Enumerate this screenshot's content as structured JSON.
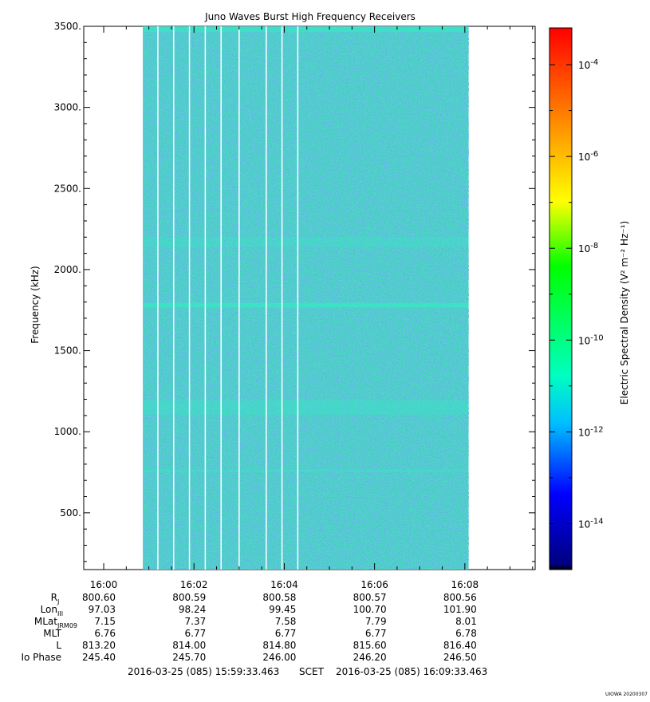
{
  "chart_data": {
    "type": "heatmap",
    "title": "Juno Waves Burst High Frequency Receivers",
    "ylabel": "Frequency (kHz)",
    "colorbar_label": "Electric Spectral Density (V² m⁻² Hz⁻¹)",
    "ylim": [
      150,
      3500
    ],
    "y_ticks": [
      "3500.",
      "3000.",
      "2500.",
      "2000.",
      "1500.",
      "1000.",
      "500."
    ],
    "y_tick_values": [
      3500,
      3000,
      2500,
      2000,
      1500,
      1000,
      500
    ],
    "x_range": [
      "15:59:33.463",
      "16:09:33.463"
    ],
    "x_ticks": [
      "16:00",
      "16:02",
      "16:04",
      "16:06",
      "16:08"
    ],
    "data_span": [
      "16:00:52",
      "16:08:05"
    ],
    "data_gaps": [
      "16:01:12",
      "16:01:33",
      "16:01:54",
      "16:02:15",
      "16:02:36",
      "16:03:00",
      "16:03:36",
      "16:03:57",
      "16:04:18"
    ],
    "colorbar_log_range": [
      -15,
      -3.2
    ],
    "colorbar_ticks": [
      {
        "base": "10",
        "exp": "-4",
        "value": -4
      },
      {
        "base": "10",
        "exp": "-6",
        "value": -6
      },
      {
        "base": "10",
        "exp": "-8",
        "value": -8
      },
      {
        "base": "10",
        "exp": "-10",
        "value": -10
      },
      {
        "base": "10",
        "exp": "-12",
        "value": -12
      },
      {
        "base": "10",
        "exp": "-14",
        "value": -14
      }
    ],
    "colors": {
      "background_fill": "#4dd6c4",
      "colorbar_stops": [
        "#000080",
        "#0000ff",
        "#00bfff",
        "#00ffbf",
        "#00ff00",
        "#ffff00",
        "#ff8000",
        "#ff0000"
      ]
    }
  },
  "ephemeris": {
    "rows": [
      {
        "label": "R",
        "sub": "J",
        "values": [
          "800.60",
          "800.59",
          "800.58",
          "800.57",
          "800.56"
        ]
      },
      {
        "label": "Lon",
        "sub": "III",
        "values": [
          "97.03",
          "98.24",
          "99.45",
          "100.70",
          "101.90"
        ]
      },
      {
        "label": "MLat",
        "sub": "JRM09",
        "values": [
          "7.15",
          "7.37",
          "7.58",
          "7.79",
          "8.01"
        ]
      },
      {
        "label": "MLT",
        "sub": "",
        "values": [
          "6.76",
          "6.77",
          "6.77",
          "6.77",
          "6.78"
        ]
      },
      {
        "label": "L",
        "sub": "",
        "values": [
          "813.20",
          "814.00",
          "814.80",
          "815.60",
          "816.40"
        ]
      },
      {
        "label": "Io Phase",
        "sub": "",
        "values": [
          "245.40",
          "245.70",
          "246.00",
          "246.20",
          "246.50"
        ]
      }
    ]
  },
  "footer": {
    "start": "2016-03-25 (085) 15:59:33.463",
    "scet": "SCET",
    "end": "2016-03-25 (085) 16:09:33.463",
    "credit": "UIOWA 20200307"
  }
}
